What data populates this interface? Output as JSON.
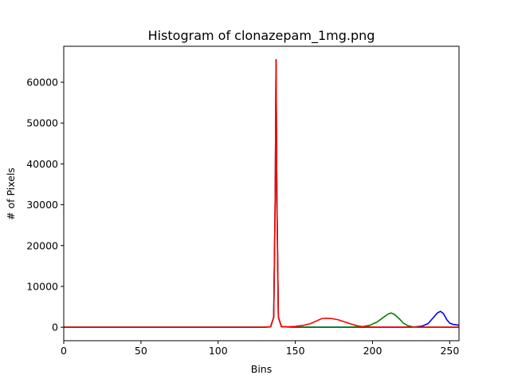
{
  "chart_data": {
    "type": "line",
    "title": "Histogram of clonazepam_1mg.png",
    "xlabel": "Bins",
    "ylabel": "# of Pixels",
    "xlim": [
      0,
      256
    ],
    "ylim": [
      -3300,
      68800
    ],
    "xticks": [
      0,
      50,
      100,
      150,
      200,
      250
    ],
    "yticks": [
      0,
      10000,
      20000,
      30000,
      40000,
      50000,
      60000
    ],
    "grid": false,
    "legend": "none",
    "series": [
      {
        "color": "#0000ff",
        "points": [
          [
            0,
            0
          ],
          [
            130,
            0
          ],
          [
            134,
            100
          ],
          [
            136,
            2500
          ],
          [
            137,
            33000
          ],
          [
            137.5,
            65500
          ],
          [
            138,
            33000
          ],
          [
            139,
            2500
          ],
          [
            141,
            100
          ],
          [
            150,
            0
          ],
          [
            225,
            0
          ],
          [
            232,
            250
          ],
          [
            236,
            900
          ],
          [
            239,
            2200
          ],
          [
            242,
            3500
          ],
          [
            244,
            3900
          ],
          [
            246,
            3300
          ],
          [
            248,
            1900
          ],
          [
            250,
            1000
          ],
          [
            252,
            700
          ],
          [
            254,
            600
          ],
          [
            256,
            500
          ]
        ]
      },
      {
        "color": "#008000",
        "points": [
          [
            0,
            0
          ],
          [
            130,
            0
          ],
          [
            134,
            100
          ],
          [
            136,
            2500
          ],
          [
            137,
            33000
          ],
          [
            137.5,
            65500
          ],
          [
            138,
            33000
          ],
          [
            139,
            2500
          ],
          [
            141,
            100
          ],
          [
            150,
            0
          ],
          [
            185,
            0
          ],
          [
            193,
            120
          ],
          [
            198,
            450
          ],
          [
            203,
            1300
          ],
          [
            207,
            2400
          ],
          [
            210,
            3200
          ],
          [
            212,
            3500
          ],
          [
            214,
            3200
          ],
          [
            217,
            2200
          ],
          [
            220,
            1000
          ],
          [
            223,
            350
          ],
          [
            226,
            100
          ],
          [
            230,
            0
          ],
          [
            256,
            0
          ]
        ]
      },
      {
        "color": "#ff0000",
        "points": [
          [
            0,
            0
          ],
          [
            130,
            0
          ],
          [
            134,
            100
          ],
          [
            136,
            2500
          ],
          [
            137,
            33000
          ],
          [
            137.5,
            65500
          ],
          [
            138,
            33000
          ],
          [
            139,
            2500
          ],
          [
            141,
            150
          ],
          [
            145,
            100
          ],
          [
            150,
            200
          ],
          [
            155,
            450
          ],
          [
            160,
            900
          ],
          [
            164,
            1600
          ],
          [
            167,
            2100
          ],
          [
            170,
            2200
          ],
          [
            174,
            2100
          ],
          [
            178,
            1800
          ],
          [
            182,
            1300
          ],
          [
            186,
            800
          ],
          [
            190,
            350
          ],
          [
            194,
            120
          ],
          [
            200,
            50
          ],
          [
            256,
            0
          ]
        ]
      }
    ]
  }
}
